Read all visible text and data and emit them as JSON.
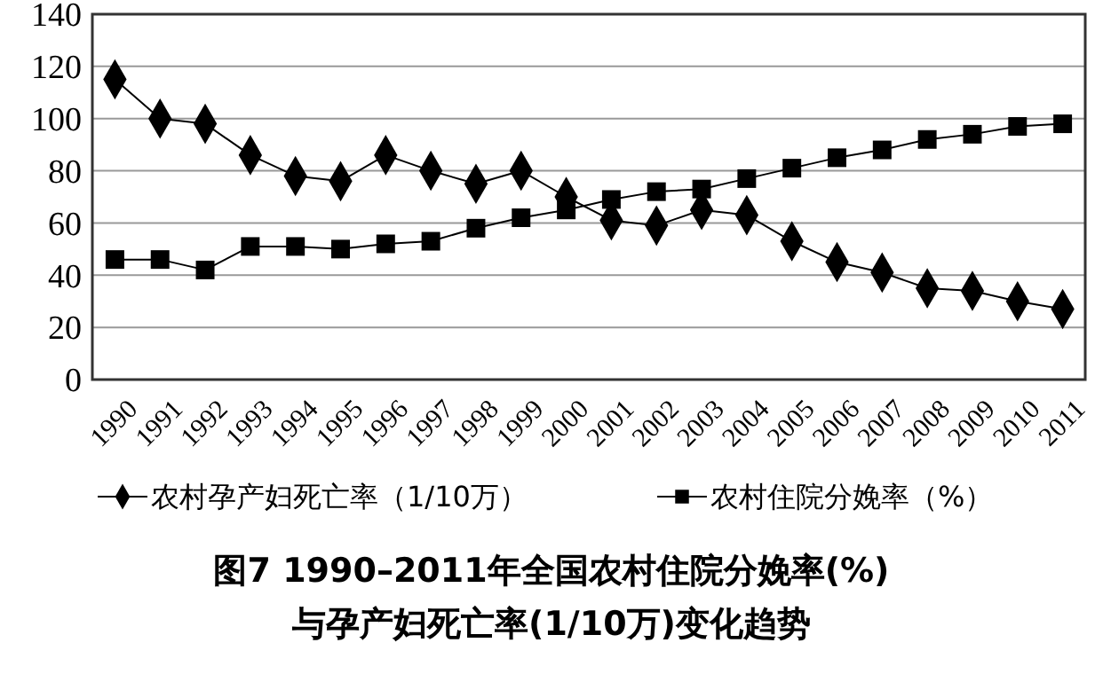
{
  "chart_data": {
    "type": "line",
    "title": "图7  1990–2011年全国农村住院分娩率(%)\n与孕产妇死亡率(1/10万)变化趋势",
    "categories": [
      "1990",
      "1991",
      "1992",
      "1993",
      "1994",
      "1995",
      "1996",
      "1997",
      "1998",
      "1999",
      "2000",
      "2001",
      "2002",
      "2003",
      "2004",
      "2005",
      "2006",
      "2007",
      "2008",
      "2009",
      "2010",
      "2011"
    ],
    "series": [
      {
        "name": "农村孕产妇死亡率（1/10万）",
        "color": "#000000",
        "marker": "diamond",
        "values": [
          115,
          100,
          98,
          86,
          78,
          76,
          86,
          80,
          75,
          80,
          70,
          61,
          59,
          65,
          63,
          53,
          45,
          41,
          35,
          34,
          30,
          27
        ]
      },
      {
        "name": "农村住院分娩率（%）",
        "color": "#000000",
        "marker": "square",
        "values": [
          46,
          46,
          42,
          51,
          51,
          50,
          52,
          53,
          58,
          62,
          65,
          69,
          72,
          73,
          77,
          81,
          85,
          88,
          92,
          94,
          97,
          98
        ]
      }
    ],
    "ylim": [
      0,
      140
    ],
    "yticks": [
      0,
      20,
      40,
      60,
      80,
      100,
      120,
      140
    ],
    "grid": "y",
    "legend": "bottom",
    "line_style": "solid"
  }
}
